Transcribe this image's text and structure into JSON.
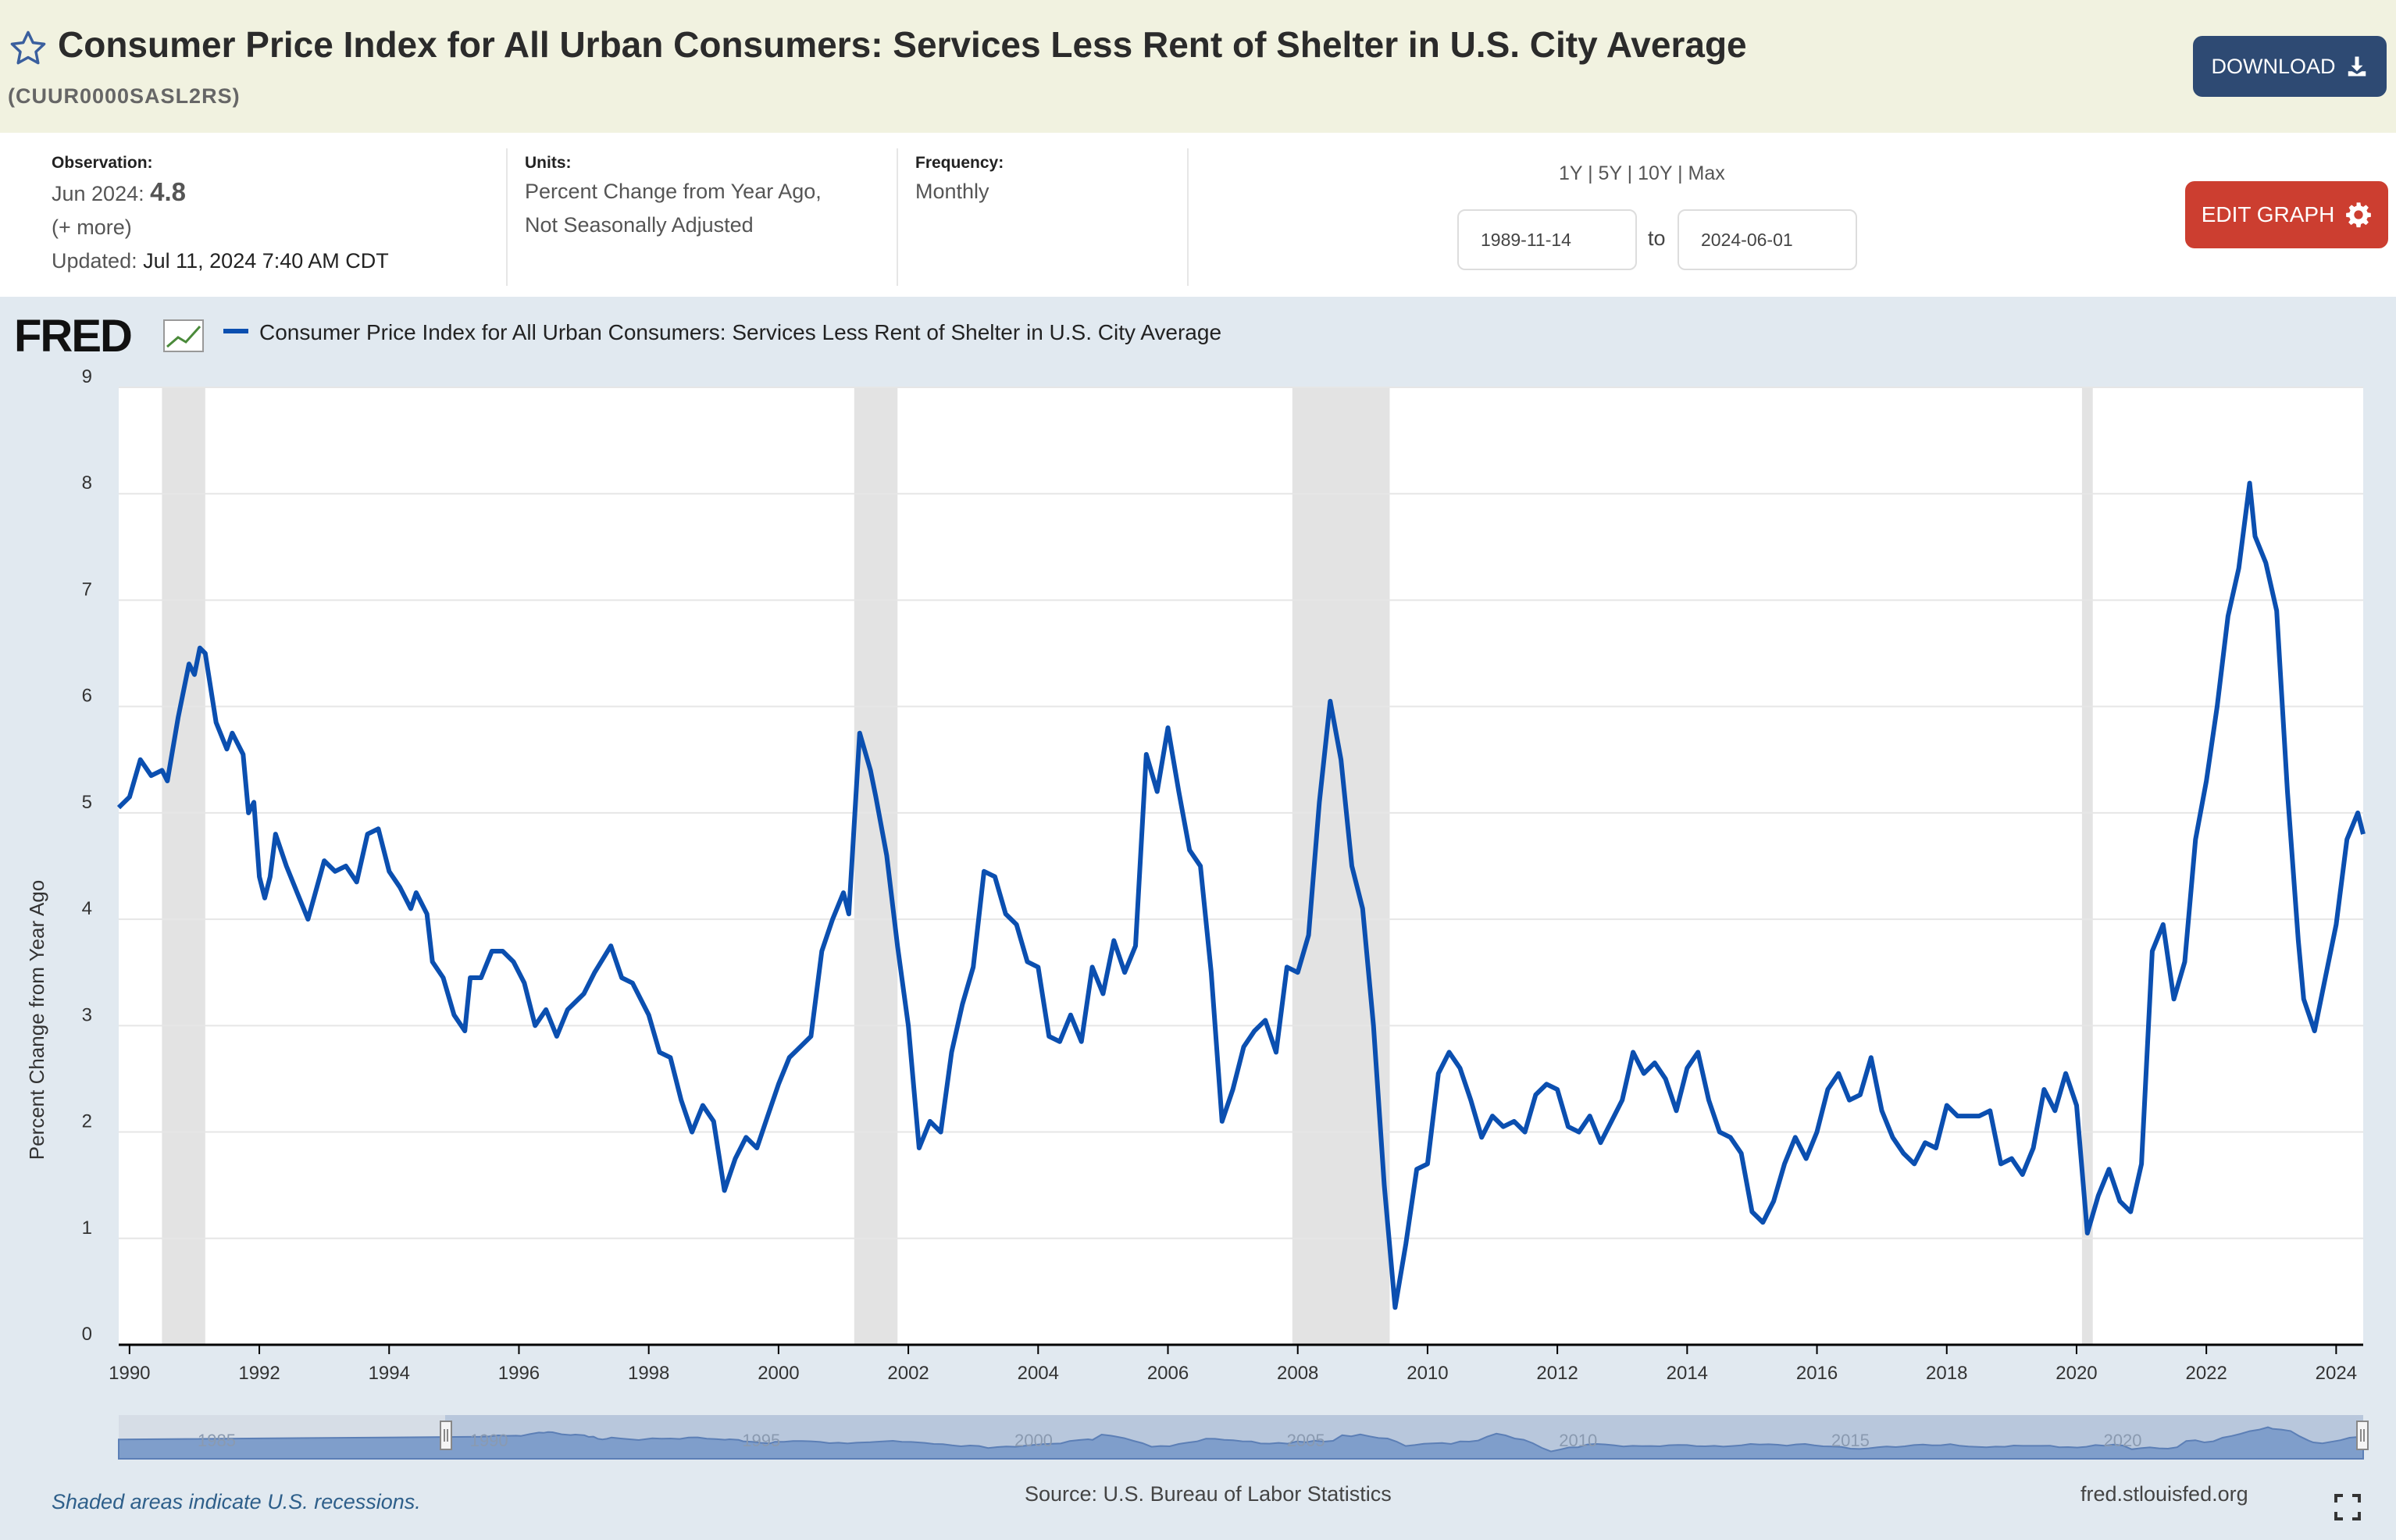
{
  "header": {
    "title": "Consumer Price Index for All Urban Consumers: Services Less Rent of Shelter in U.S. City Average",
    "series_id": "(CUUR0000SASL2RS)",
    "download_label": "DOWNLOAD"
  },
  "info": {
    "observation_label": "Observation:",
    "observation_date": "Jun 2024:",
    "observation_value": "4.8",
    "more_link": "(+ more)",
    "updated_label": "Updated:",
    "updated_value": "Jul 11, 2024 7:40 AM CDT",
    "units_label": "Units:",
    "units_line1": "Percent Change from Year Ago,",
    "units_line2": "Not Seasonally Adjusted",
    "frequency_label": "Frequency:",
    "frequency_value": "Monthly",
    "range_1y": "1Y",
    "range_5y": "5Y",
    "range_10y": "10Y",
    "range_max": "Max",
    "range_sep": "|",
    "start_date": "1989-11-14",
    "to_label": "to",
    "end_date": "2024-06-01",
    "edit_label": "EDIT GRAPH"
  },
  "chart": {
    "brand": "FRED",
    "legend_label": "Consumer Price Index for All Urban Consumers: Services Less Rent of Shelter in U.S. City Average",
    "footnote": "Shaded areas indicate U.S. recessions.",
    "source": "Source: U.S. Bureau of Labor Statistics",
    "site": "fred.stlouisfed.org"
  },
  "colors": {
    "line": "#0b4fb0",
    "header_bg": "#f1f2e0",
    "panel_bg": "#e1e9f0",
    "download_bg": "#2e4a73",
    "edit_bg": "#cc3e30",
    "recession": "#e3e3e3"
  },
  "icons": [
    "star-icon",
    "download-icon",
    "gear-icon",
    "fullscreen-icon",
    "fred-logo-icon"
  ],
  "chart_data": {
    "type": "line",
    "ylabel": "Percent Change from Year Ago",
    "ylim": [
      0,
      9
    ],
    "yticks": [
      0,
      1,
      2,
      3,
      4,
      5,
      6,
      7,
      8,
      9
    ],
    "xlim": [
      "1989-11",
      "2024-06"
    ],
    "xticks": [
      "1990",
      "1992",
      "1994",
      "1996",
      "1998",
      "2000",
      "2002",
      "2004",
      "2006",
      "2008",
      "2010",
      "2012",
      "2014",
      "2016",
      "2018",
      "2020",
      "2022",
      "2024"
    ],
    "grid": true,
    "legend": "top-left",
    "recessions": [
      [
        "1990-07",
        "1991-03"
      ],
      [
        "2001-03",
        "2001-11"
      ],
      [
        "2007-12",
        "2009-06"
      ],
      [
        "2020-02",
        "2020-04"
      ]
    ],
    "navigator_ticks": [
      "1985",
      "1990",
      "1995",
      "2000",
      "2005",
      "2010",
      "2015",
      "2020"
    ],
    "series": [
      {
        "name": "Consumer Price Index for All Urban Consumers: Services Less Rent of Shelter in U.S. City Average",
        "points": [
          [
            "1989-11",
            5.05
          ],
          [
            "1990-01",
            5.15
          ],
          [
            "1990-03",
            5.5
          ],
          [
            "1990-05",
            5.35
          ],
          [
            "1990-07",
            5.4
          ],
          [
            "1990-08",
            5.3
          ],
          [
            "1990-10",
            5.9
          ],
          [
            "1990-12",
            6.4
          ],
          [
            "1991-01",
            6.3
          ],
          [
            "1991-02",
            6.55
          ],
          [
            "1991-03",
            6.5
          ],
          [
            "1991-05",
            5.85
          ],
          [
            "1991-07",
            5.6
          ],
          [
            "1991-08",
            5.75
          ],
          [
            "1991-10",
            5.55
          ],
          [
            "1991-11",
            5.0
          ],
          [
            "1991-12",
            5.1
          ],
          [
            "1992-01",
            4.4
          ],
          [
            "1992-02",
            4.2
          ],
          [
            "1992-03",
            4.4
          ],
          [
            "1992-04",
            4.8
          ],
          [
            "1992-06",
            4.5
          ],
          [
            "1992-08",
            4.25
          ],
          [
            "1992-10",
            4.0
          ],
          [
            "1993-01",
            4.55
          ],
          [
            "1993-03",
            4.45
          ],
          [
            "1993-05",
            4.5
          ],
          [
            "1993-07",
            4.35
          ],
          [
            "1993-09",
            4.8
          ],
          [
            "1993-11",
            4.85
          ],
          [
            "1994-01",
            4.45
          ],
          [
            "1994-03",
            4.3
          ],
          [
            "1994-05",
            4.1
          ],
          [
            "1994-06",
            4.25
          ],
          [
            "1994-08",
            4.05
          ],
          [
            "1994-09",
            3.6
          ],
          [
            "1994-11",
            3.45
          ],
          [
            "1995-01",
            3.1
          ],
          [
            "1995-03",
            2.95
          ],
          [
            "1995-04",
            3.45
          ],
          [
            "1995-06",
            3.45
          ],
          [
            "1995-08",
            3.7
          ],
          [
            "1995-10",
            3.7
          ],
          [
            "1995-12",
            3.6
          ],
          [
            "1996-02",
            3.4
          ],
          [
            "1996-04",
            3.0
          ],
          [
            "1996-06",
            3.15
          ],
          [
            "1996-08",
            2.9
          ],
          [
            "1996-10",
            3.15
          ],
          [
            "1997-01",
            3.3
          ],
          [
            "1997-03",
            3.5
          ],
          [
            "1997-06",
            3.75
          ],
          [
            "1997-08",
            3.45
          ],
          [
            "1997-10",
            3.4
          ],
          [
            "1998-01",
            3.1
          ],
          [
            "1998-03",
            2.75
          ],
          [
            "1998-05",
            2.7
          ],
          [
            "1998-07",
            2.3
          ],
          [
            "1998-09",
            2.0
          ],
          [
            "1998-11",
            2.25
          ],
          [
            "1999-01",
            2.1
          ],
          [
            "1999-03",
            1.45
          ],
          [
            "1999-05",
            1.75
          ],
          [
            "1999-07",
            1.95
          ],
          [
            "1999-09",
            1.85
          ],
          [
            "1999-11",
            2.15
          ],
          [
            "2000-01",
            2.45
          ],
          [
            "2000-03",
            2.7
          ],
          [
            "2000-05",
            2.8
          ],
          [
            "2000-07",
            2.9
          ],
          [
            "2000-09",
            3.7
          ],
          [
            "2000-11",
            4.0
          ],
          [
            "2001-01",
            4.25
          ],
          [
            "2001-02",
            4.05
          ],
          [
            "2001-04",
            5.75
          ],
          [
            "2001-06",
            5.4
          ],
          [
            "2001-07",
            5.15
          ],
          [
            "2001-09",
            4.6
          ],
          [
            "2001-11",
            3.75
          ],
          [
            "2002-01",
            3.0
          ],
          [
            "2002-03",
            1.85
          ],
          [
            "2002-05",
            2.1
          ],
          [
            "2002-07",
            2.0
          ],
          [
            "2002-09",
            2.75
          ],
          [
            "2002-11",
            3.2
          ],
          [
            "2003-01",
            3.55
          ],
          [
            "2003-03",
            4.45
          ],
          [
            "2003-05",
            4.4
          ],
          [
            "2003-07",
            4.05
          ],
          [
            "2003-09",
            3.95
          ],
          [
            "2003-11",
            3.6
          ],
          [
            "2004-01",
            3.55
          ],
          [
            "2004-03",
            2.9
          ],
          [
            "2004-05",
            2.85
          ],
          [
            "2004-07",
            3.1
          ],
          [
            "2004-09",
            2.85
          ],
          [
            "2004-11",
            3.55
          ],
          [
            "2005-01",
            3.3
          ],
          [
            "2005-03",
            3.8
          ],
          [
            "2005-05",
            3.5
          ],
          [
            "2005-07",
            3.75
          ],
          [
            "2005-09",
            5.55
          ],
          [
            "2005-11",
            5.2
          ],
          [
            "2006-01",
            5.8
          ],
          [
            "2006-03",
            5.2
          ],
          [
            "2006-05",
            4.65
          ],
          [
            "2006-07",
            4.5
          ],
          [
            "2006-09",
            3.5
          ],
          [
            "2006-11",
            2.1
          ],
          [
            "2007-01",
            2.4
          ],
          [
            "2007-03",
            2.8
          ],
          [
            "2007-05",
            2.95
          ],
          [
            "2007-07",
            3.05
          ],
          [
            "2007-09",
            2.75
          ],
          [
            "2007-11",
            3.55
          ],
          [
            "2008-01",
            3.5
          ],
          [
            "2008-03",
            3.85
          ],
          [
            "2008-05",
            5.1
          ],
          [
            "2008-07",
            6.05
          ],
          [
            "2008-09",
            5.5
          ],
          [
            "2008-11",
            4.5
          ],
          [
            "2009-01",
            4.1
          ],
          [
            "2009-03",
            3.0
          ],
          [
            "2009-05",
            1.5
          ],
          [
            "2009-07",
            0.35
          ],
          [
            "2009-09",
            0.95
          ],
          [
            "2009-11",
            1.65
          ],
          [
            "2010-01",
            1.7
          ],
          [
            "2010-03",
            2.55
          ],
          [
            "2010-05",
            2.75
          ],
          [
            "2010-07",
            2.6
          ],
          [
            "2010-09",
            2.3
          ],
          [
            "2010-11",
            1.95
          ],
          [
            "2011-01",
            2.15
          ],
          [
            "2011-03",
            2.05
          ],
          [
            "2011-05",
            2.1
          ],
          [
            "2011-07",
            2.0
          ],
          [
            "2011-09",
            2.35
          ],
          [
            "2011-11",
            2.45
          ],
          [
            "2012-01",
            2.4
          ],
          [
            "2012-03",
            2.05
          ],
          [
            "2012-05",
            2.0
          ],
          [
            "2012-07",
            2.15
          ],
          [
            "2012-09",
            1.9
          ],
          [
            "2012-11",
            2.1
          ],
          [
            "2013-01",
            2.3
          ],
          [
            "2013-03",
            2.75
          ],
          [
            "2013-05",
            2.55
          ],
          [
            "2013-07",
            2.65
          ],
          [
            "2013-09",
            2.5
          ],
          [
            "2013-11",
            2.2
          ],
          [
            "2014-01",
            2.6
          ],
          [
            "2014-03",
            2.75
          ],
          [
            "2014-05",
            2.3
          ],
          [
            "2014-07",
            2.0
          ],
          [
            "2014-09",
            1.95
          ],
          [
            "2014-11",
            1.8
          ],
          [
            "2015-01",
            1.25
          ],
          [
            "2015-03",
            1.15
          ],
          [
            "2015-05",
            1.35
          ],
          [
            "2015-07",
            1.7
          ],
          [
            "2015-09",
            1.95
          ],
          [
            "2015-11",
            1.75
          ],
          [
            "2016-01",
            2.0
          ],
          [
            "2016-03",
            2.4
          ],
          [
            "2016-05",
            2.55
          ],
          [
            "2016-07",
            2.3
          ],
          [
            "2016-09",
            2.35
          ],
          [
            "2016-11",
            2.7
          ],
          [
            "2017-01",
            2.2
          ],
          [
            "2017-03",
            1.95
          ],
          [
            "2017-05",
            1.8
          ],
          [
            "2017-07",
            1.7
          ],
          [
            "2017-09",
            1.9
          ],
          [
            "2017-11",
            1.85
          ],
          [
            "2018-01",
            2.25
          ],
          [
            "2018-03",
            2.15
          ],
          [
            "2018-05",
            2.15
          ],
          [
            "2018-07",
            2.15
          ],
          [
            "2018-09",
            2.2
          ],
          [
            "2018-11",
            1.7
          ],
          [
            "2019-01",
            1.75
          ],
          [
            "2019-03",
            1.6
          ],
          [
            "2019-05",
            1.85
          ],
          [
            "2019-07",
            2.4
          ],
          [
            "2019-09",
            2.2
          ],
          [
            "2019-11",
            2.55
          ],
          [
            "2020-01",
            2.25
          ],
          [
            "2020-03",
            1.05
          ],
          [
            "2020-05",
            1.4
          ],
          [
            "2020-07",
            1.65
          ],
          [
            "2020-09",
            1.35
          ],
          [
            "2020-11",
            1.25
          ],
          [
            "2021-01",
            1.7
          ],
          [
            "2021-03",
            3.7
          ],
          [
            "2021-05",
            3.95
          ],
          [
            "2021-07",
            3.25
          ],
          [
            "2021-09",
            3.6
          ],
          [
            "2021-11",
            4.75
          ],
          [
            "2022-01",
            5.3
          ],
          [
            "2022-03",
            6.0
          ],
          [
            "2022-05",
            6.85
          ],
          [
            "2022-07",
            7.3
          ],
          [
            "2022-09",
            8.1
          ],
          [
            "2022-10",
            7.6
          ],
          [
            "2022-12",
            7.35
          ],
          [
            "2023-02",
            6.9
          ],
          [
            "2023-04",
            5.2
          ],
          [
            "2023-06",
            3.8
          ],
          [
            "2023-07",
            3.25
          ],
          [
            "2023-09",
            2.95
          ],
          [
            "2023-11",
            3.45
          ],
          [
            "2024-01",
            3.95
          ],
          [
            "2024-03",
            4.75
          ],
          [
            "2024-05",
            5.0
          ],
          [
            "2024-06",
            4.8
          ]
        ]
      }
    ]
  }
}
